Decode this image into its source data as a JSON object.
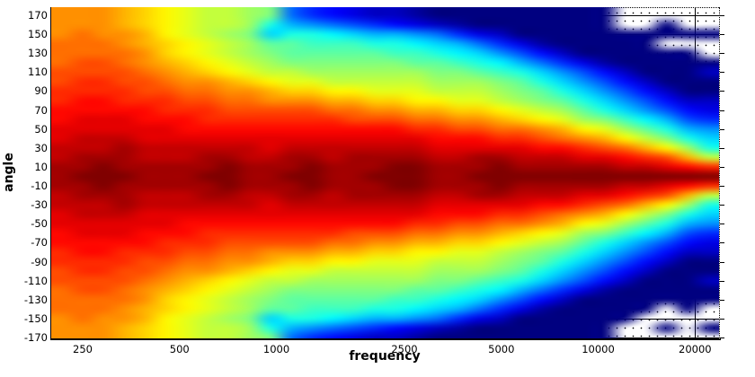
{
  "chart_data": {
    "type": "heatmap",
    "title": "",
    "xlabel": "frequency",
    "ylabel": "angle",
    "x_scale": "log",
    "x_range_hz": [
      200,
      23700
    ],
    "y_range_deg": [
      -180,
      180
    ],
    "x_ticks": [
      250,
      500,
      1000,
      2500,
      5000,
      10000,
      20000
    ],
    "x_tick_labels": [
      "250",
      "500",
      "1000",
      "2500",
      "5000",
      "10000",
      "20000"
    ],
    "y_ticks": [
      170,
      150,
      130,
      110,
      90,
      70,
      50,
      30,
      10,
      -10,
      -30,
      -50,
      -70,
      -90,
      -110,
      -130,
      -150,
      -170
    ],
    "colormap": "jet",
    "value_unit": "dB attenuation below on-axis max (0 = dark red, 30 = dark navy, null = below scale / no data, shown white with stipple)",
    "value_range_db": [
      0,
      30
    ],
    "grid_on": true,
    "legend": "none",
    "solid_gridlines_visible_in_no_data": {
      "x_hz": [
        20000
      ],
      "y_deg": [
        170,
        150,
        -150,
        -170
      ]
    },
    "frequencies_hz": [
      216,
      250,
      290,
      337,
      391,
      454,
      527,
      612,
      711,
      825,
      958,
      1112,
      1291,
      1498,
      1739,
      2019,
      2344,
      2721,
      3158,
      3667,
      4256,
      4941,
      5736,
      6659,
      7730,
      8973,
      10417,
      12092,
      14038,
      16296,
      18918,
      21961
    ],
    "angles_deg": [
      180,
      170,
      160,
      150,
      140,
      130,
      120,
      110,
      100,
      90,
      80,
      70,
      60,
      50,
      40,
      30,
      20,
      10,
      0,
      -10,
      -20,
      -30,
      -40,
      -50,
      -60,
      -70,
      -80,
      -90,
      -100,
      -110,
      -120,
      -130,
      -140,
      -150,
      -160,
      -170,
      -180
    ],
    "grid_db": [
      [
        8,
        8,
        8,
        9,
        10,
        11,
        12,
        13,
        13,
        14,
        15,
        23,
        25,
        26,
        27,
        28,
        28,
        29,
        30,
        30,
        30,
        30,
        30,
        30,
        30,
        30,
        30,
        null,
        null,
        null,
        null,
        null
      ],
      [
        8,
        8,
        8,
        9,
        10,
        11,
        12,
        13,
        13,
        14,
        15,
        23,
        25,
        26,
        27,
        28,
        28,
        29,
        30,
        30,
        30,
        30,
        30,
        30,
        30,
        30,
        30,
        null,
        null,
        null,
        null,
        null
      ],
      [
        8,
        8,
        8,
        9,
        10,
        11,
        12,
        13,
        13,
        14,
        18,
        21,
        22,
        23,
        24,
        25,
        26,
        27,
        28,
        29,
        30,
        30,
        30,
        30,
        30,
        30,
        30,
        null,
        null,
        30,
        null,
        null
      ],
      [
        8,
        7,
        8,
        8,
        9,
        11,
        12,
        13,
        14,
        15,
        20,
        18,
        18,
        19,
        20,
        21,
        21,
        22,
        23,
        25,
        27,
        28,
        30,
        30,
        30,
        30,
        30,
        30,
        30,
        30,
        30,
        30
      ],
      [
        7,
        7,
        7,
        8,
        9,
        10,
        11,
        12,
        13,
        14,
        16,
        16,
        17,
        17,
        17,
        18,
        18,
        19,
        20,
        21,
        23,
        25,
        27,
        29,
        30,
        30,
        30,
        30,
        30,
        null,
        null,
        null
      ],
      [
        7,
        7,
        7,
        7,
        8,
        10,
        11,
        12,
        13,
        14,
        15,
        16,
        16,
        16,
        16,
        16,
        17,
        17,
        18,
        19,
        20,
        22,
        24,
        26,
        28,
        30,
        30,
        30,
        30,
        30,
        30,
        null
      ],
      [
        7,
        6,
        6,
        7,
        8,
        9,
        10,
        11,
        12,
        13,
        14,
        15,
        15,
        15,
        15,
        15,
        15,
        16,
        16,
        17,
        18,
        19,
        21,
        23,
        25,
        27,
        29,
        30,
        30,
        30,
        30,
        30
      ],
      [
        6,
        6,
        6,
        6,
        7,
        8,
        9,
        10,
        11,
        12,
        13,
        13,
        14,
        14,
        14,
        14,
        14,
        14,
        15,
        15,
        16,
        17,
        18,
        20,
        22,
        24,
        26,
        28,
        30,
        30,
        30,
        28
      ],
      [
        6,
        5,
        5,
        6,
        6,
        7,
        8,
        8,
        9,
        10,
        11,
        12,
        12,
        13,
        13,
        13,
        13,
        13,
        14,
        14,
        14,
        15,
        16,
        18,
        20,
        22,
        24,
        26,
        28,
        30,
        30,
        30
      ],
      [
        5,
        5,
        5,
        5,
        6,
        6,
        7,
        7,
        8,
        8,
        9,
        10,
        10,
        11,
        11,
        12,
        12,
        12,
        13,
        13,
        13,
        14,
        15,
        16,
        18,
        20,
        22,
        24,
        26,
        28,
        30,
        30
      ],
      [
        5,
        4,
        4,
        5,
        5,
        5,
        6,
        6,
        7,
        7,
        8,
        8,
        8,
        9,
        9,
        10,
        10,
        11,
        11,
        12,
        12,
        13,
        14,
        15,
        16,
        18,
        20,
        22,
        24,
        26,
        28,
        28
      ],
      [
        4,
        4,
        4,
        4,
        4,
        5,
        5,
        5,
        6,
        6,
        6,
        6,
        6,
        7,
        7,
        8,
        8,
        9,
        9,
        10,
        10,
        11,
        12,
        13,
        14,
        16,
        18,
        20,
        22,
        24,
        26,
        27
      ],
      [
        4,
        3,
        3,
        3,
        4,
        4,
        4,
        5,
        5,
        5,
        5,
        5,
        5,
        5,
        6,
        6,
        6,
        7,
        7,
        8,
        8,
        9,
        10,
        11,
        12,
        14,
        15,
        17,
        19,
        21,
        24,
        25
      ],
      [
        3,
        3,
        3,
        3,
        3,
        3,
        4,
        4,
        4,
        4,
        4,
        4,
        4,
        4,
        4,
        4,
        4,
        5,
        5,
        6,
        6,
        7,
        7,
        8,
        9,
        11,
        12,
        14,
        16,
        18,
        21,
        22
      ],
      [
        3,
        2,
        2,
        2,
        3,
        3,
        3,
        3,
        3,
        3,
        3,
        3,
        3,
        3,
        3,
        3,
        3,
        3,
        4,
        4,
        4,
        5,
        5,
        6,
        7,
        8,
        9,
        11,
        13,
        15,
        18,
        20
      ],
      [
        2,
        2,
        2,
        1,
        2,
        2,
        2,
        2,
        2,
        2,
        3,
        2,
        2,
        2,
        2,
        2,
        2,
        2,
        3,
        3,
        3,
        3,
        3,
        4,
        4,
        5,
        6,
        7,
        9,
        11,
        14,
        18
      ],
      [
        2,
        1,
        1,
        1,
        2,
        2,
        2,
        1,
        1,
        2,
        2,
        1,
        1,
        2,
        1,
        1,
        1,
        1,
        2,
        2,
        1,
        1,
        2,
        2,
        2,
        3,
        3,
        4,
        5,
        6,
        9,
        13
      ],
      [
        1,
        1,
        0,
        1,
        1,
        1,
        1,
        1,
        0,
        1,
        1,
        1,
        0,
        1,
        1,
        1,
        0,
        0,
        1,
        1,
        1,
        0,
        1,
        1,
        1,
        1,
        1,
        2,
        2,
        3,
        4,
        5
      ],
      [
        1,
        0,
        0,
        0,
        1,
        1,
        1,
        0,
        0,
        1,
        1,
        0,
        0,
        1,
        1,
        0,
        0,
        0,
        1,
        1,
        0,
        0,
        0,
        0,
        0,
        0,
        0,
        0,
        0,
        0,
        0,
        0
      ],
      [
        1,
        1,
        0,
        1,
        1,
        1,
        1,
        1,
        0,
        1,
        1,
        1,
        0,
        1,
        1,
        1,
        0,
        0,
        1,
        1,
        1,
        0,
        1,
        1,
        1,
        1,
        1,
        2,
        2,
        3,
        4,
        5
      ],
      [
        2,
        1,
        1,
        1,
        2,
        2,
        2,
        1,
        1,
        2,
        2,
        1,
        1,
        2,
        1,
        1,
        1,
        1,
        2,
        2,
        1,
        1,
        2,
        2,
        2,
        3,
        3,
        4,
        5,
        6,
        9,
        13
      ],
      [
        2,
        2,
        2,
        1,
        2,
        2,
        2,
        2,
        2,
        2,
        3,
        2,
        2,
        2,
        2,
        2,
        2,
        2,
        3,
        3,
        3,
        3,
        3,
        4,
        4,
        5,
        6,
        7,
        9,
        11,
        14,
        18
      ],
      [
        3,
        2,
        2,
        2,
        3,
        3,
        3,
        3,
        3,
        3,
        3,
        3,
        3,
        3,
        3,
        3,
        3,
        3,
        4,
        4,
        4,
        5,
        5,
        6,
        7,
        8,
        9,
        11,
        13,
        15,
        18,
        20
      ],
      [
        3,
        3,
        3,
        3,
        3,
        3,
        4,
        4,
        4,
        4,
        4,
        4,
        4,
        4,
        4,
        4,
        4,
        5,
        5,
        6,
        6,
        7,
        7,
        8,
        9,
        11,
        12,
        14,
        16,
        18,
        21,
        22
      ],
      [
        4,
        3,
        3,
        3,
        4,
        4,
        4,
        5,
        5,
        5,
        5,
        5,
        5,
        5,
        6,
        6,
        6,
        7,
        7,
        8,
        8,
        9,
        10,
        11,
        12,
        14,
        15,
        17,
        19,
        21,
        24,
        25
      ],
      [
        4,
        4,
        4,
        4,
        4,
        5,
        5,
        5,
        6,
        6,
        6,
        6,
        6,
        7,
        7,
        8,
        8,
        9,
        9,
        10,
        10,
        11,
        12,
        13,
        14,
        16,
        18,
        20,
        22,
        24,
        26,
        27
      ],
      [
        5,
        4,
        4,
        5,
        5,
        5,
        6,
        6,
        7,
        7,
        8,
        8,
        8,
        9,
        9,
        10,
        10,
        11,
        11,
        12,
        12,
        13,
        14,
        15,
        16,
        18,
        20,
        22,
        24,
        26,
        28,
        28
      ],
      [
        5,
        5,
        5,
        5,
        6,
        6,
        7,
        7,
        8,
        8,
        9,
        10,
        10,
        11,
        11,
        12,
        12,
        12,
        13,
        13,
        13,
        14,
        15,
        16,
        18,
        20,
        22,
        24,
        26,
        28,
        30,
        30
      ],
      [
        6,
        5,
        5,
        6,
        6,
        7,
        8,
        8,
        9,
        10,
        11,
        12,
        12,
        13,
        13,
        13,
        13,
        13,
        14,
        14,
        14,
        15,
        16,
        18,
        20,
        22,
        24,
        26,
        28,
        30,
        30,
        30
      ],
      [
        6,
        6,
        6,
        6,
        7,
        8,
        9,
        10,
        11,
        12,
        13,
        13,
        14,
        14,
        14,
        14,
        14,
        14,
        15,
        15,
        16,
        17,
        18,
        20,
        22,
        24,
        26,
        28,
        30,
        30,
        30,
        28
      ],
      [
        7,
        6,
        6,
        7,
        8,
        9,
        10,
        11,
        12,
        13,
        14,
        15,
        15,
        15,
        15,
        15,
        15,
        16,
        16,
        17,
        18,
        19,
        21,
        23,
        25,
        27,
        29,
        30,
        30,
        30,
        30,
        30
      ],
      [
        7,
        7,
        7,
        7,
        8,
        10,
        11,
        12,
        13,
        14,
        15,
        16,
        16,
        16,
        16,
        16,
        17,
        17,
        18,
        19,
        20,
        22,
        24,
        26,
        28,
        30,
        30,
        30,
        30,
        30,
        30,
        30
      ],
      [
        7,
        7,
        7,
        8,
        9,
        10,
        11,
        12,
        13,
        14,
        16,
        16,
        17,
        17,
        17,
        18,
        18,
        19,
        20,
        21,
        23,
        25,
        27,
        29,
        30,
        30,
        30,
        30,
        30,
        null,
        30,
        null
      ],
      [
        8,
        7,
        8,
        8,
        9,
        11,
        12,
        13,
        14,
        15,
        20,
        18,
        18,
        19,
        20,
        21,
        21,
        22,
        23,
        25,
        27,
        28,
        30,
        30,
        30,
        30,
        30,
        30,
        null,
        null,
        null,
        null
      ],
      [
        8,
        8,
        8,
        9,
        10,
        11,
        12,
        13,
        13,
        14,
        18,
        21,
        22,
        23,
        24,
        25,
        26,
        27,
        28,
        29,
        30,
        30,
        30,
        30,
        30,
        30,
        30,
        null,
        null,
        30,
        null,
        30
      ],
      [
        8,
        8,
        8,
        9,
        10,
        11,
        12,
        13,
        13,
        14,
        15,
        23,
        25,
        26,
        27,
        28,
        28,
        29,
        30,
        30,
        30,
        30,
        30,
        30,
        30,
        30,
        30,
        null,
        null,
        null,
        null,
        null
      ],
      [
        8,
        8,
        8,
        9,
        10,
        11,
        12,
        13,
        13,
        14,
        15,
        23,
        25,
        26,
        27,
        28,
        28,
        29,
        30,
        30,
        30,
        30,
        30,
        30,
        30,
        30,
        30,
        null,
        null,
        null,
        null,
        null
      ]
    ]
  }
}
